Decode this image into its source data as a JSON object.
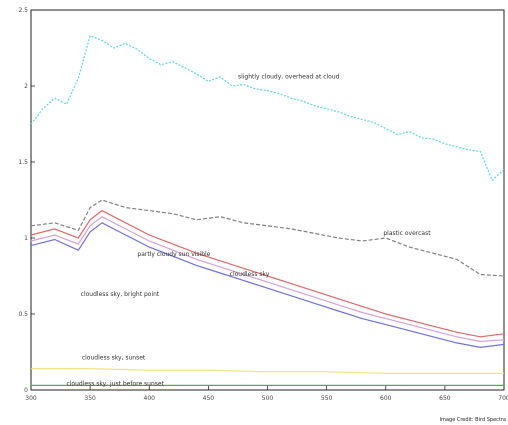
{
  "chart_data": {
    "type": "line",
    "title": "",
    "xlabel": "",
    "ylabel": "",
    "xlim": [
      300,
      700
    ],
    "ylim": [
      0,
      2.5
    ],
    "grid": false,
    "legend": "inline labels",
    "x_ticks": [
      "300",
      "350",
      "400",
      "450",
      "500",
      "550",
      "600",
      "650",
      "700"
    ],
    "y_ticks": [
      "0",
      "0.5",
      "1",
      "1.5",
      "2",
      "2.5"
    ],
    "credit": "Image Credit: Bird Spectra",
    "series": [
      {
        "name": "slightly cloudy, overhead at cloud",
        "color": "#5ad6e6",
        "dash": "2,1.5",
        "label_at": [
          475,
          2.05
        ],
        "x": [
          300,
          310,
          320,
          330,
          340,
          350,
          360,
          370,
          380,
          390,
          400,
          410,
          420,
          430,
          440,
          450,
          460,
          470,
          480,
          490,
          500,
          510,
          520,
          530,
          540,
          550,
          560,
          570,
          580,
          590,
          600,
          610,
          620,
          630,
          640,
          650,
          660,
          670,
          680,
          690,
          700
        ],
        "y": [
          1.75,
          1.85,
          1.92,
          1.88,
          2.05,
          2.33,
          2.3,
          2.25,
          2.28,
          2.24,
          2.18,
          2.14,
          2.16,
          2.12,
          2.08,
          2.03,
          2.06,
          2.0,
          2.01,
          1.98,
          1.97,
          1.95,
          1.92,
          1.9,
          1.87,
          1.85,
          1.83,
          1.8,
          1.78,
          1.76,
          1.72,
          1.68,
          1.7,
          1.66,
          1.65,
          1.62,
          1.6,
          1.58,
          1.57,
          1.38,
          1.45
        ]
      },
      {
        "name": "plastic overcast",
        "color": "#808080",
        "dash": "4,2",
        "label_at": [
          598,
          1.02
        ],
        "x": [
          300,
          320,
          340,
          350,
          360,
          380,
          400,
          420,
          440,
          460,
          480,
          500,
          520,
          540,
          560,
          580,
          600,
          620,
          640,
          660,
          680,
          700
        ],
        "y": [
          1.08,
          1.1,
          1.05,
          1.2,
          1.25,
          1.2,
          1.18,
          1.16,
          1.12,
          1.14,
          1.1,
          1.08,
          1.06,
          1.03,
          1.0,
          0.98,
          1.0,
          0.94,
          0.9,
          0.86,
          0.76,
          0.75
        ]
      },
      {
        "name": "partly cloudy sun visible",
        "color": "#e06868",
        "dash": "",
        "label_at": [
          390,
          0.88
        ],
        "x": [
          300,
          320,
          340,
          350,
          360,
          380,
          400,
          420,
          440,
          460,
          480,
          500,
          520,
          540,
          560,
          580,
          600,
          620,
          640,
          660,
          680,
          700
        ],
        "y": [
          1.02,
          1.06,
          1.0,
          1.12,
          1.18,
          1.1,
          1.02,
          0.96,
          0.9,
          0.85,
          0.8,
          0.75,
          0.7,
          0.65,
          0.6,
          0.55,
          0.5,
          0.46,
          0.42,
          0.38,
          0.35,
          0.37
        ]
      },
      {
        "name": "cloudless sky",
        "color": "#d8a0d8",
        "dash": "",
        "label_at": [
          468,
          0.75
        ],
        "x": [
          300,
          320,
          340,
          350,
          360,
          380,
          400,
          420,
          440,
          460,
          480,
          500,
          520,
          540,
          560,
          580,
          600,
          620,
          640,
          660,
          680,
          700
        ],
        "y": [
          0.98,
          1.02,
          0.96,
          1.08,
          1.14,
          1.06,
          0.98,
          0.92,
          0.86,
          0.81,
          0.76,
          0.71,
          0.66,
          0.61,
          0.56,
          0.51,
          0.47,
          0.43,
          0.39,
          0.35,
          0.32,
          0.33
        ]
      },
      {
        "name": "cloudless sky, bright point",
        "color": "#7070e8",
        "dash": "",
        "label_at": [
          342,
          0.62
        ],
        "x": [
          300,
          320,
          340,
          350,
          360,
          380,
          400,
          420,
          440,
          460,
          480,
          500,
          520,
          540,
          560,
          580,
          600,
          620,
          640,
          660,
          680,
          700
        ],
        "y": [
          0.95,
          0.99,
          0.92,
          1.04,
          1.1,
          1.02,
          0.94,
          0.88,
          0.82,
          0.77,
          0.72,
          0.67,
          0.62,
          0.57,
          0.52,
          0.47,
          0.43,
          0.39,
          0.35,
          0.31,
          0.28,
          0.3
        ]
      },
      {
        "name": "cloudless sky, sunset",
        "color": "#f0e27a",
        "dash": "",
        "label_at": [
          343,
          0.2
        ],
        "x": [
          300,
          350,
          400,
          450,
          500,
          550,
          600,
          650,
          700
        ],
        "y": [
          0.14,
          0.14,
          0.13,
          0.13,
          0.12,
          0.12,
          0.11,
          0.11,
          0.11
        ]
      },
      {
        "name": "cloudless sky, just before sunset",
        "color": "#4caf50",
        "dash": "",
        "label_at": [
          330,
          0.03
        ],
        "x": [
          300,
          350,
          400,
          450,
          500,
          550,
          600,
          650,
          700
        ],
        "y": [
          0.03,
          0.03,
          0.03,
          0.03,
          0.03,
          0.03,
          0.03,
          0.03,
          0.03
        ]
      }
    ]
  }
}
